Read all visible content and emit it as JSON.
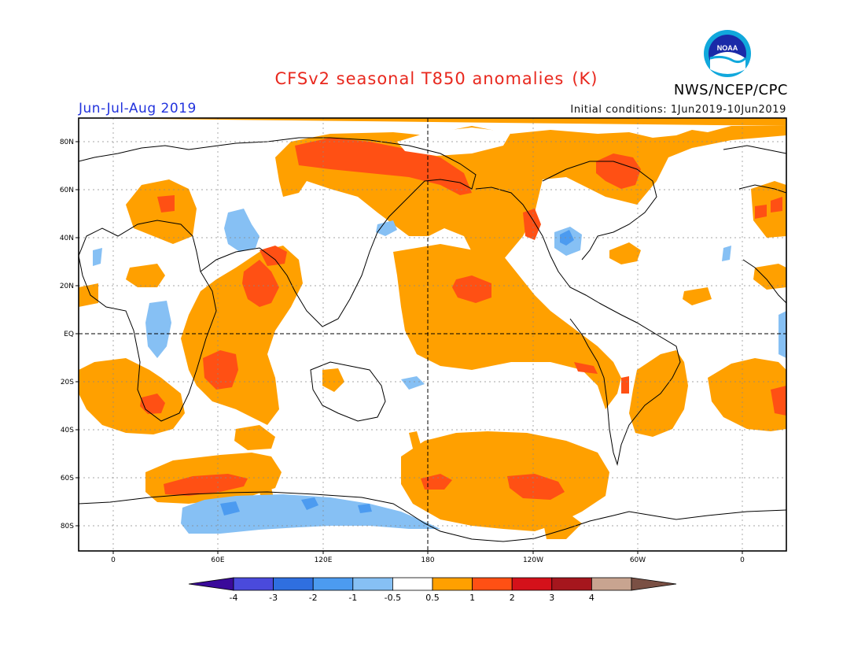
{
  "header": {
    "title_main": "CFSv2 seasonal T850 anomalies",
    "title_unit": "(K)",
    "agency": "NWS/NCEP/CPC",
    "logo_text": "NOAA",
    "season": "Jun-Jul-Aug 2019",
    "initial_conditions": "Initial conditions: 1Jun2019-10Jun2019"
  },
  "map": {
    "lat_labels": [
      "80N",
      "60N",
      "40N",
      "20N",
      "EQ",
      "20S",
      "40S",
      "60S",
      "80S"
    ],
    "lon_labels": [
      "0",
      "60E",
      "120E",
      "180",
      "120W",
      "60W",
      "0"
    ]
  },
  "colorbar": {
    "tick_labels": [
      "-4",
      "-3",
      "-2",
      "-1",
      "-0.5",
      "0.5",
      "1",
      "2",
      "3",
      "4"
    ],
    "colors": [
      "#3a0a9a",
      "#4a4adc",
      "#2f6fe0",
      "#4c9bf0",
      "#86c0f4",
      "#ffffff",
      "#ffa000",
      "#ff5014",
      "#d4111a",
      "#a5161d",
      "#c8a490",
      "#7a5044"
    ]
  }
}
